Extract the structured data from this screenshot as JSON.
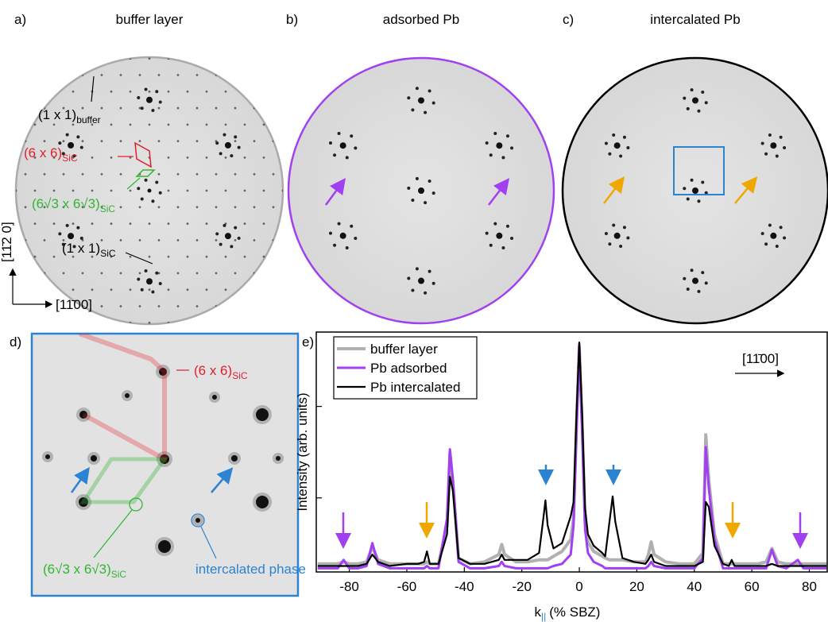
{
  "panels": {
    "a": {
      "label": "a)",
      "title": "buffer layer",
      "annotations": [
        {
          "text": "(1 x 1)",
          "sub": "buffer"
        },
        {
          "text": "(6 x 6)",
          "sub": "SiC"
        },
        {
          "text": "(6√3 x 6√3)",
          "sub": "SiC"
        },
        {
          "text": "(1 x 1)",
          "sub": "SiC"
        }
      ],
      "axes": [
        "[11̄2 0]",
        "[11̄00]"
      ]
    },
    "b": {
      "label": "b)",
      "title": "adsorbed Pb"
    },
    "c": {
      "label": "c)",
      "title": "intercalated Pb"
    },
    "d": {
      "label": "d)",
      "annotations": [
        {
          "text": "(6 x 6)",
          "sub": "SiC"
        },
        {
          "text": "(6√3 x 6√3)",
          "sub": "SiC"
        },
        {
          "text": "intercalated phase"
        }
      ]
    },
    "e": {
      "label": "e)"
    }
  },
  "chart_data": {
    "type": "line",
    "x_label": "k",
    "x_label_sub": "||",
    "x_label_unit": "(% SBZ)",
    "y_label": "Intensity (arb. units)",
    "direction_label": "[11̄00]",
    "legend": "upper left",
    "log_y": true,
    "xlim": [
      -91.5,
      86.5
    ],
    "xticks": [
      -80,
      -60,
      -40,
      -20,
      0,
      20,
      40,
      60,
      80
    ],
    "ylim": [
      0.155,
      65
    ],
    "yticks": [
      1,
      10
    ],
    "x": [
      -91,
      -87,
      -84,
      -82,
      -80,
      -77,
      -74,
      -72,
      -70,
      -66,
      -60,
      -56,
      -54,
      -53,
      -52,
      -49,
      -46,
      -45,
      -44,
      -42,
      -38,
      -33,
      -28,
      -27,
      -26,
      -22,
      -18,
      -14,
      -12.5,
      -11.8,
      -11,
      -9,
      -6,
      -3,
      -2,
      -1,
      0,
      1,
      2,
      3,
      5,
      8,
      9,
      10.5,
      11.6,
      12.5,
      15,
      19,
      23,
      24,
      25,
      26,
      30,
      35,
      40,
      43,
      44,
      45,
      47,
      50,
      52,
      53,
      54,
      57,
      62,
      65,
      67,
      69,
      72,
      76,
      78,
      82,
      86
    ],
    "series": [
      {
        "name": "buffer layer",
        "color": "#b0b0b0",
        "values": [
          0.19,
          0.19,
          0.19,
          0.2,
          0.19,
          0.19,
          0.2,
          0.29,
          0.21,
          0.19,
          0.19,
          0.19,
          0.19,
          0.2,
          0.19,
          0.19,
          0.5,
          3.1,
          1.5,
          0.22,
          0.19,
          0.2,
          0.24,
          0.31,
          0.24,
          0.2,
          0.2,
          0.21,
          0.21,
          0.21,
          0.21,
          0.23,
          0.26,
          0.35,
          0.6,
          6,
          45,
          6,
          0.55,
          0.33,
          0.26,
          0.23,
          0.22,
          0.21,
          0.21,
          0.21,
          0.21,
          0.2,
          0.2,
          0.24,
          0.33,
          0.24,
          0.2,
          0.19,
          0.19,
          0.25,
          4.9,
          1.6,
          0.4,
          0.19,
          0.19,
          0.19,
          0.19,
          0.19,
          0.19,
          0.2,
          0.28,
          0.2,
          0.19,
          0.19,
          0.19,
          0.19,
          0.19
        ]
      },
      {
        "name": "Pb adsorbed",
        "color": "#a040f0",
        "values": [
          0.17,
          0.17,
          0.17,
          0.21,
          0.17,
          0.17,
          0.18,
          0.32,
          0.19,
          0.17,
          0.17,
          0.17,
          0.17,
          0.18,
          0.17,
          0.17,
          0.6,
          3.4,
          1.6,
          0.2,
          0.17,
          0.17,
          0.18,
          0.2,
          0.18,
          0.17,
          0.17,
          0.17,
          0.17,
          0.17,
          0.17,
          0.18,
          0.19,
          0.24,
          0.5,
          5,
          48,
          5,
          0.45,
          0.25,
          0.2,
          0.18,
          0.17,
          0.17,
          0.17,
          0.17,
          0.17,
          0.17,
          0.17,
          0.18,
          0.2,
          0.18,
          0.17,
          0.17,
          0.17,
          0.22,
          3.6,
          1.3,
          0.35,
          0.17,
          0.17,
          0.17,
          0.17,
          0.17,
          0.17,
          0.17,
          0.27,
          0.18,
          0.17,
          0.21,
          0.17,
          0.17,
          0.17
        ]
      },
      {
        "name": "Pb intercalated",
        "color": "#000000",
        "values": [
          0.18,
          0.18,
          0.18,
          0.18,
          0.18,
          0.18,
          0.19,
          0.24,
          0.2,
          0.18,
          0.19,
          0.19,
          0.2,
          0.26,
          0.19,
          0.19,
          0.4,
          1.7,
          1.2,
          0.22,
          0.19,
          0.19,
          0.21,
          0.24,
          0.21,
          0.21,
          0.21,
          0.25,
          0.6,
          0.94,
          0.5,
          0.28,
          0.32,
          0.63,
          0.9,
          8,
          50,
          8,
          0.77,
          0.4,
          0.3,
          0.25,
          0.23,
          0.55,
          1.04,
          0.55,
          0.22,
          0.2,
          0.19,
          0.21,
          0.24,
          0.2,
          0.18,
          0.18,
          0.18,
          0.2,
          0.9,
          0.8,
          0.3,
          0.19,
          0.18,
          0.21,
          0.18,
          0.18,
          0.18,
          0.18,
          0.19,
          0.18,
          0.18,
          0.18,
          0.18,
          0.18,
          0.18
        ]
      }
    ]
  }
}
